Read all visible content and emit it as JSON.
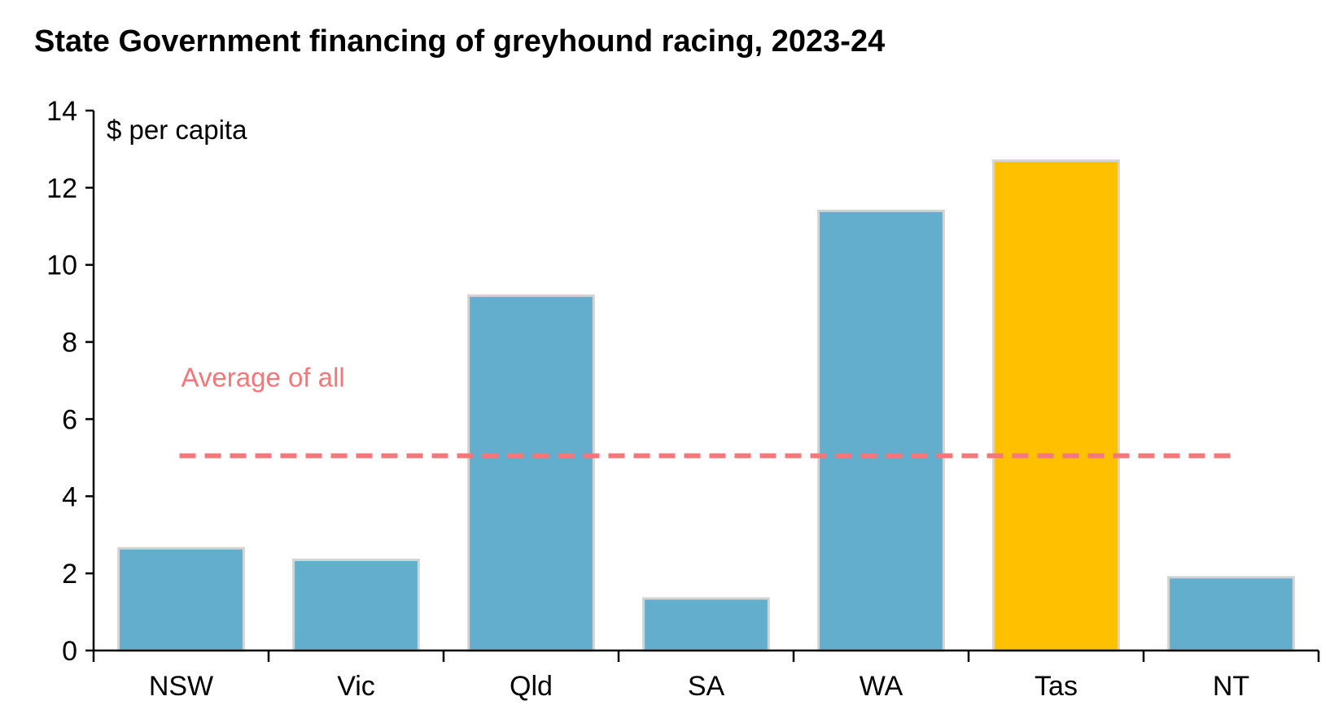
{
  "chart_data": {
    "type": "bar",
    "title": "State Government financing of greyhound racing, 2023-24",
    "ylabel": "$ per capita",
    "xlabel": "",
    "categories": [
      "NSW",
      "Vic",
      "Qld",
      "SA",
      "WA",
      "Tas",
      "NT"
    ],
    "values": [
      2.65,
      2.35,
      9.2,
      1.35,
      11.4,
      12.7,
      1.9
    ],
    "highlight_category": "Tas",
    "ylim": [
      0,
      14
    ],
    "yticks": [
      0,
      2,
      4,
      6,
      8,
      10,
      12,
      14
    ],
    "grid": false,
    "legend": "none",
    "average": {
      "label": "Average of all",
      "value": 5.05
    },
    "colors": {
      "bar": "#62aecc",
      "highlight": "#ffc000",
      "bar_stroke": "#d3d3d3",
      "average": "#f4777a",
      "axis": "#000000"
    }
  }
}
